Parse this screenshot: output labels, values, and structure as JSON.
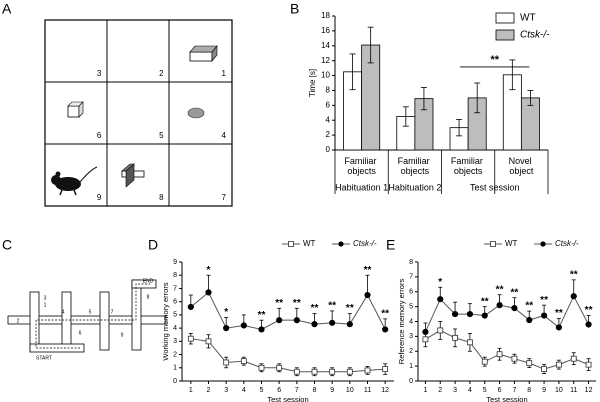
{
  "panel_labels": [
    "A",
    "B",
    "C",
    "D",
    "E"
  ],
  "grid_labels": [
    "3",
    "2",
    "1",
    "6",
    "5",
    "4",
    "9",
    "8",
    "7"
  ],
  "maze_labels": [
    "1",
    "2",
    "3",
    "4",
    "5",
    "6",
    "7",
    "8",
    "9",
    "START",
    "END"
  ],
  "chart_data": [
    {
      "type": "bar",
      "ylabel": "Time [s]",
      "categories": [
        "Familiar objects",
        "Familiar objects",
        "Familiar objects",
        "Novel object"
      ],
      "sessions": [
        "Habituation 1",
        "Habituation 2",
        "Test session"
      ],
      "ylim": [
        0,
        18
      ],
      "yticks": [
        0,
        2,
        4,
        6,
        8,
        10,
        12,
        14,
        16,
        18
      ],
      "significance": "**",
      "series": [
        {
          "name": "WT",
          "color": "#ffffff",
          "values": [
            10.5,
            4.5,
            3.0,
            10.1
          ],
          "errors": [
            2.4,
            1.3,
            1.1,
            2.0
          ]
        },
        {
          "name": "Ctsk-/-",
          "color": "#bdbdbd",
          "values": [
            14.1,
            6.9,
            7.0,
            7.0
          ],
          "errors": [
            2.4,
            1.5,
            2.0,
            1.0
          ]
        }
      ]
    },
    {
      "type": "line",
      "ylabel": "Working memory errors",
      "xlabel": "Test session",
      "x": [
        1,
        2,
        3,
        4,
        5,
        6,
        7,
        8,
        9,
        10,
        11,
        12
      ],
      "xlim": [
        0.5,
        12.5
      ],
      "xticks": [
        1,
        2,
        3,
        4,
        5,
        6,
        7,
        8,
        9,
        10,
        11,
        12
      ],
      "ylim": [
        0,
        9
      ],
      "yticks": [
        0,
        1,
        2,
        3,
        4,
        5,
        6,
        7,
        8,
        9
      ],
      "series": [
        {
          "name": "WT",
          "color": "#555555",
          "marker": "square",
          "marker_fill": "#ffffff",
          "values": [
            3.2,
            3.0,
            1.4,
            1.5,
            1.0,
            1.0,
            0.7,
            0.7,
            0.7,
            0.7,
            0.8,
            0.9
          ],
          "errors": [
            0.4,
            0.5,
            0.4,
            0.3,
            0.3,
            0.3,
            0.3,
            0.3,
            0.3,
            0.3,
            0.3,
            0.4
          ]
        },
        {
          "name": "Ctsk-/-",
          "color": "#555555",
          "marker": "circle",
          "marker_fill": "#000000",
          "values": [
            5.6,
            6.7,
            4.0,
            4.2,
            3.9,
            4.6,
            4.6,
            4.3,
            4.4,
            4.3,
            6.5,
            3.9
          ],
          "errors": [
            0.9,
            1.3,
            0.8,
            0.8,
            0.7,
            0.9,
            0.9,
            0.8,
            0.9,
            0.8,
            1.5,
            0.8
          ]
        }
      ],
      "sig": [
        {
          "x": 2,
          "label": "*"
        },
        {
          "x": 3,
          "label": "*"
        },
        {
          "x": 5,
          "label": "**"
        },
        {
          "x": 6,
          "label": "**"
        },
        {
          "x": 7,
          "label": "**"
        },
        {
          "x": 8,
          "label": "**"
        },
        {
          "x": 9,
          "label": "**"
        },
        {
          "x": 10,
          "label": "**"
        },
        {
          "x": 11,
          "label": "**"
        },
        {
          "x": 12,
          "label": "**"
        }
      ]
    },
    {
      "type": "line",
      "ylabel": "Reference memory errors",
      "xlabel": "Test session",
      "x": [
        1,
        2,
        3,
        4,
        5,
        6,
        7,
        8,
        9,
        10,
        11,
        12
      ],
      "xlim": [
        0.5,
        12.5
      ],
      "xticks": [
        1,
        2,
        3,
        4,
        5,
        6,
        7,
        8,
        9,
        10,
        11,
        12
      ],
      "ylim": [
        0,
        8
      ],
      "yticks": [
        0,
        1,
        2,
        3,
        4,
        5,
        6,
        7,
        8
      ],
      "series": [
        {
          "name": "WT",
          "color": "#555555",
          "marker": "square",
          "marker_fill": "#ffffff",
          "values": [
            2.8,
            3.4,
            2.9,
            2.6,
            1.3,
            1.8,
            1.5,
            1.2,
            0.8,
            1.1,
            1.5,
            1.1
          ],
          "errors": [
            0.5,
            0.6,
            0.6,
            0.6,
            0.3,
            0.4,
            0.3,
            0.3,
            0.3,
            0.3,
            0.4,
            0.4
          ]
        },
        {
          "name": "Ctsk-/-",
          "color": "#555555",
          "marker": "circle",
          "marker_fill": "#000000",
          "values": [
            3.3,
            5.5,
            4.5,
            4.5,
            4.4,
            5.1,
            4.9,
            4.1,
            4.4,
            3.6,
            5.7,
            3.8
          ],
          "errors": [
            0.6,
            0.8,
            0.8,
            0.7,
            0.6,
            0.7,
            0.7,
            0.6,
            0.7,
            0.6,
            1.1,
            0.6
          ]
        }
      ],
      "sig": [
        {
          "x": 2,
          "label": "*"
        },
        {
          "x": 5,
          "label": "**"
        },
        {
          "x": 6,
          "label": "**"
        },
        {
          "x": 7,
          "label": "**"
        },
        {
          "x": 8,
          "label": "**"
        },
        {
          "x": 9,
          "label": "**"
        },
        {
          "x": 10,
          "label": "**"
        },
        {
          "x": 11,
          "label": "**"
        },
        {
          "x": 12,
          "label": "**"
        }
      ]
    }
  ]
}
